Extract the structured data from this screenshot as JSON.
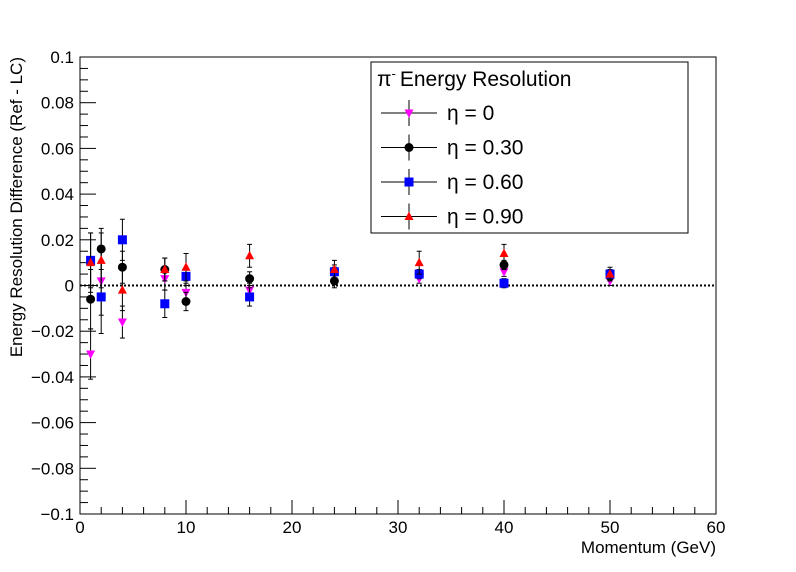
{
  "chart_data": {
    "type": "scatter",
    "title": "",
    "xlabel": "Momentum (GeV)",
    "ylabel": "Energy Resolution Difference (Ref - LC)",
    "xlim": [
      0,
      60
    ],
    "ylim": [
      -0.1,
      0.1
    ],
    "x_ticks": [
      "0",
      "10",
      "20",
      "30",
      "40",
      "50",
      "60"
    ],
    "y_ticks": [
      "−0.1",
      "−0.08",
      "−0.06",
      "−0.04",
      "−0.02",
      "0",
      "0.02",
      "0.04",
      "0.06",
      "0.08",
      "0.1"
    ],
    "reference_line": {
      "y": 0,
      "style": "dotted"
    },
    "legend": {
      "placement": "top-right",
      "title_symbol": "π",
      "title_superscript": "-",
      "title_text": "Energy Resolution"
    },
    "series": [
      {
        "name": "η = 0",
        "color": "#ff00ff",
        "marker": "triangle-down",
        "points": [
          {
            "x": 1,
            "y": -0.03,
            "err": 0.011
          },
          {
            "x": 2,
            "y": 0.002,
            "err": 0.015
          },
          {
            "x": 4,
            "y": -0.016,
            "err": 0.007
          },
          {
            "x": 8,
            "y": 0.003,
            "err": 0.005
          },
          {
            "x": 10,
            "y": -0.003,
            "err": 0.004
          },
          {
            "x": 16,
            "y": -0.002,
            "err": 0.003
          },
          {
            "x": 24,
            "y": 0.005,
            "err": 0.003
          },
          {
            "x": 32,
            "y": 0.003,
            "err": 0.002
          },
          {
            "x": 40,
            "y": 0.006,
            "err": 0.002
          },
          {
            "x": 50,
            "y": 0.002,
            "err": 0.002
          }
        ]
      },
      {
        "name": "η = 0.30",
        "color": "#000000",
        "marker": "circle",
        "points": [
          {
            "x": 1,
            "y": -0.006,
            "err": 0.013
          },
          {
            "x": 2,
            "y": 0.016,
            "err": 0.009
          },
          {
            "x": 4,
            "y": 0.008,
            "err": 0.007
          },
          {
            "x": 8,
            "y": 0.007,
            "err": 0.005
          },
          {
            "x": 10,
            "y": -0.007,
            "err": 0.004
          },
          {
            "x": 16,
            "y": 0.003,
            "err": 0.003
          },
          {
            "x": 24,
            "y": 0.002,
            "err": 0.003
          },
          {
            "x": 32,
            "y": 0.005,
            "err": 0.002
          },
          {
            "x": 40,
            "y": 0.009,
            "err": 0.002
          },
          {
            "x": 50,
            "y": 0.004,
            "err": 0.002
          }
        ]
      },
      {
        "name": "η = 0.60",
        "color": "#0000ff",
        "marker": "square",
        "points": [
          {
            "x": 1,
            "y": 0.011,
            "err": 0.012
          },
          {
            "x": 2,
            "y": -0.005,
            "err": 0.016
          },
          {
            "x": 4,
            "y": 0.02,
            "err": 0.009
          },
          {
            "x": 8,
            "y": -0.008,
            "err": 0.006
          },
          {
            "x": 10,
            "y": 0.004,
            "err": 0.004
          },
          {
            "x": 16,
            "y": -0.005,
            "err": 0.004
          },
          {
            "x": 24,
            "y": 0.006,
            "err": 0.003
          },
          {
            "x": 32,
            "y": 0.005,
            "err": 0.002
          },
          {
            "x": 40,
            "y": 0.001,
            "err": 0.002
          },
          {
            "x": 50,
            "y": 0.005,
            "err": 0.002
          }
        ]
      },
      {
        "name": "η = 0.90",
        "color": "#ff0000",
        "marker": "triangle-up",
        "points": [
          {
            "x": 1,
            "y": 0.01,
            "err": 0.013
          },
          {
            "x": 2,
            "y": 0.011,
            "err": 0.012
          },
          {
            "x": 4,
            "y": -0.002,
            "err": 0.009
          },
          {
            "x": 8,
            "y": 0.007,
            "err": 0.005
          },
          {
            "x": 10,
            "y": 0.008,
            "err": 0.006
          },
          {
            "x": 16,
            "y": 0.013,
            "err": 0.005
          },
          {
            "x": 24,
            "y": 0.007,
            "err": 0.004
          },
          {
            "x": 32,
            "y": 0.01,
            "err": 0.005
          },
          {
            "x": 40,
            "y": 0.014,
            "err": 0.004
          },
          {
            "x": 50,
            "y": 0.005,
            "err": 0.003
          }
        ]
      }
    ]
  }
}
